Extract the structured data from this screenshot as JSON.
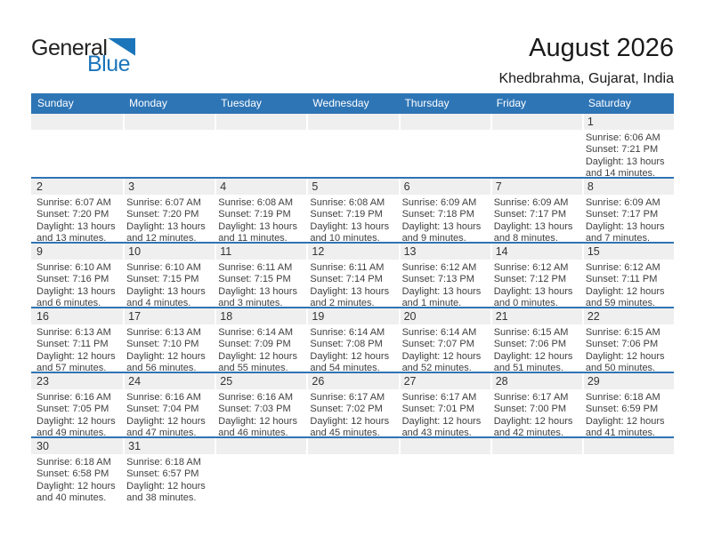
{
  "logo": {
    "general": "General",
    "blue": "Blue"
  },
  "header": {
    "title": "August 2026",
    "subtitle": "Khedbrahma, Gujarat, India"
  },
  "colors": {
    "accent_blue": "#2e75b6",
    "separator_blue": "#2e74b5",
    "strip_gray": "#efefef",
    "logo_blue": "#1b75bb"
  },
  "calendar": {
    "day_headers": [
      "Sunday",
      "Monday",
      "Tuesday",
      "Wednesday",
      "Thursday",
      "Friday",
      "Saturday"
    ],
    "weeks": [
      [
        null,
        null,
        null,
        null,
        null,
        null,
        {
          "day": "1",
          "sunrise": "Sunrise: 6:06 AM",
          "sunset": "Sunset: 7:21 PM",
          "daylight1": "Daylight: 13 hours",
          "daylight2": "and 14 minutes."
        }
      ],
      [
        {
          "day": "2",
          "sunrise": "Sunrise: 6:07 AM",
          "sunset": "Sunset: 7:20 PM",
          "daylight1": "Daylight: 13 hours",
          "daylight2": "and 13 minutes."
        },
        {
          "day": "3",
          "sunrise": "Sunrise: 6:07 AM",
          "sunset": "Sunset: 7:20 PM",
          "daylight1": "Daylight: 13 hours",
          "daylight2": "and 12 minutes."
        },
        {
          "day": "4",
          "sunrise": "Sunrise: 6:08 AM",
          "sunset": "Sunset: 7:19 PM",
          "daylight1": "Daylight: 13 hours",
          "daylight2": "and 11 minutes."
        },
        {
          "day": "5",
          "sunrise": "Sunrise: 6:08 AM",
          "sunset": "Sunset: 7:19 PM",
          "daylight1": "Daylight: 13 hours",
          "daylight2": "and 10 minutes."
        },
        {
          "day": "6",
          "sunrise": "Sunrise: 6:09 AM",
          "sunset": "Sunset: 7:18 PM",
          "daylight1": "Daylight: 13 hours",
          "daylight2": "and 9 minutes."
        },
        {
          "day": "7",
          "sunrise": "Sunrise: 6:09 AM",
          "sunset": "Sunset: 7:17 PM",
          "daylight1": "Daylight: 13 hours",
          "daylight2": "and 8 minutes."
        },
        {
          "day": "8",
          "sunrise": "Sunrise: 6:09 AM",
          "sunset": "Sunset: 7:17 PM",
          "daylight1": "Daylight: 13 hours",
          "daylight2": "and 7 minutes."
        }
      ],
      [
        {
          "day": "9",
          "sunrise": "Sunrise: 6:10 AM",
          "sunset": "Sunset: 7:16 PM",
          "daylight1": "Daylight: 13 hours",
          "daylight2": "and 6 minutes."
        },
        {
          "day": "10",
          "sunrise": "Sunrise: 6:10 AM",
          "sunset": "Sunset: 7:15 PM",
          "daylight1": "Daylight: 13 hours",
          "daylight2": "and 4 minutes."
        },
        {
          "day": "11",
          "sunrise": "Sunrise: 6:11 AM",
          "sunset": "Sunset: 7:15 PM",
          "daylight1": "Daylight: 13 hours",
          "daylight2": "and 3 minutes."
        },
        {
          "day": "12",
          "sunrise": "Sunrise: 6:11 AM",
          "sunset": "Sunset: 7:14 PM",
          "daylight1": "Daylight: 13 hours",
          "daylight2": "and 2 minutes."
        },
        {
          "day": "13",
          "sunrise": "Sunrise: 6:12 AM",
          "sunset": "Sunset: 7:13 PM",
          "daylight1": "Daylight: 13 hours",
          "daylight2": "and 1 minute."
        },
        {
          "day": "14",
          "sunrise": "Sunrise: 6:12 AM",
          "sunset": "Sunset: 7:12 PM",
          "daylight1": "Daylight: 13 hours",
          "daylight2": "and 0 minutes."
        },
        {
          "day": "15",
          "sunrise": "Sunrise: 6:12 AM",
          "sunset": "Sunset: 7:11 PM",
          "daylight1": "Daylight: 12 hours",
          "daylight2": "and 59 minutes."
        }
      ],
      [
        {
          "day": "16",
          "sunrise": "Sunrise: 6:13 AM",
          "sunset": "Sunset: 7:11 PM",
          "daylight1": "Daylight: 12 hours",
          "daylight2": "and 57 minutes."
        },
        {
          "day": "17",
          "sunrise": "Sunrise: 6:13 AM",
          "sunset": "Sunset: 7:10 PM",
          "daylight1": "Daylight: 12 hours",
          "daylight2": "and 56 minutes."
        },
        {
          "day": "18",
          "sunrise": "Sunrise: 6:14 AM",
          "sunset": "Sunset: 7:09 PM",
          "daylight1": "Daylight: 12 hours",
          "daylight2": "and 55 minutes."
        },
        {
          "day": "19",
          "sunrise": "Sunrise: 6:14 AM",
          "sunset": "Sunset: 7:08 PM",
          "daylight1": "Daylight: 12 hours",
          "daylight2": "and 54 minutes."
        },
        {
          "day": "20",
          "sunrise": "Sunrise: 6:14 AM",
          "sunset": "Sunset: 7:07 PM",
          "daylight1": "Daylight: 12 hours",
          "daylight2": "and 52 minutes."
        },
        {
          "day": "21",
          "sunrise": "Sunrise: 6:15 AM",
          "sunset": "Sunset: 7:06 PM",
          "daylight1": "Daylight: 12 hours",
          "daylight2": "and 51 minutes."
        },
        {
          "day": "22",
          "sunrise": "Sunrise: 6:15 AM",
          "sunset": "Sunset: 7:06 PM",
          "daylight1": "Daylight: 12 hours",
          "daylight2": "and 50 minutes."
        }
      ],
      [
        {
          "day": "23",
          "sunrise": "Sunrise: 6:16 AM",
          "sunset": "Sunset: 7:05 PM",
          "daylight1": "Daylight: 12 hours",
          "daylight2": "and 49 minutes."
        },
        {
          "day": "24",
          "sunrise": "Sunrise: 6:16 AM",
          "sunset": "Sunset: 7:04 PM",
          "daylight1": "Daylight: 12 hours",
          "daylight2": "and 47 minutes."
        },
        {
          "day": "25",
          "sunrise": "Sunrise: 6:16 AM",
          "sunset": "Sunset: 7:03 PM",
          "daylight1": "Daylight: 12 hours",
          "daylight2": "and 46 minutes."
        },
        {
          "day": "26",
          "sunrise": "Sunrise: 6:17 AM",
          "sunset": "Sunset: 7:02 PM",
          "daylight1": "Daylight: 12 hours",
          "daylight2": "and 45 minutes."
        },
        {
          "day": "27",
          "sunrise": "Sunrise: 6:17 AM",
          "sunset": "Sunset: 7:01 PM",
          "daylight1": "Daylight: 12 hours",
          "daylight2": "and 43 minutes."
        },
        {
          "day": "28",
          "sunrise": "Sunrise: 6:17 AM",
          "sunset": "Sunset: 7:00 PM",
          "daylight1": "Daylight: 12 hours",
          "daylight2": "and 42 minutes."
        },
        {
          "day": "29",
          "sunrise": "Sunrise: 6:18 AM",
          "sunset": "Sunset: 6:59 PM",
          "daylight1": "Daylight: 12 hours",
          "daylight2": "and 41 minutes."
        }
      ],
      [
        {
          "day": "30",
          "sunrise": "Sunrise: 6:18 AM",
          "sunset": "Sunset: 6:58 PM",
          "daylight1": "Daylight: 12 hours",
          "daylight2": "and 40 minutes."
        },
        {
          "day": "31",
          "sunrise": "Sunrise: 6:18 AM",
          "sunset": "Sunset: 6:57 PM",
          "daylight1": "Daylight: 12 hours",
          "daylight2": "and 38 minutes."
        },
        null,
        null,
        null,
        null,
        null
      ]
    ]
  }
}
